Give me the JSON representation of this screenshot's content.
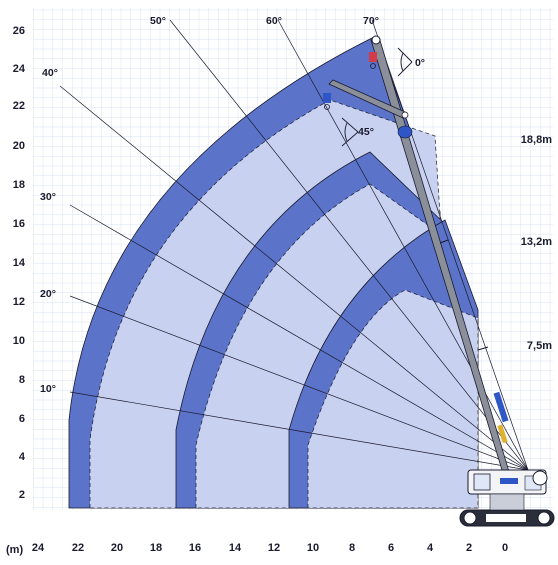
{
  "diagram": {
    "units_label": "(m)",
    "x_ticks": [
      "24",
      "22",
      "20",
      "18",
      "16",
      "14",
      "12",
      "10",
      "8",
      "6",
      "4",
      "2",
      "0"
    ],
    "y_ticks": [
      "2",
      "4",
      "6",
      "8",
      "10",
      "12",
      "14",
      "16",
      "18",
      "20",
      "22",
      "24",
      "26"
    ],
    "boom_angles": [
      "10°",
      "20°",
      "30°",
      "40°",
      "50°",
      "60°",
      "70°"
    ],
    "jib_angles": [
      "0°",
      "45°"
    ],
    "boom_lengths": [
      "18,8m",
      "13,2m",
      "7,5m"
    ],
    "colors": {
      "grid": "#c9d7ef",
      "band": "#5b74c9",
      "inner_zone": "#c8d1ef",
      "boom": "#8a8f99",
      "outline": "#1a1a2e"
    }
  }
}
